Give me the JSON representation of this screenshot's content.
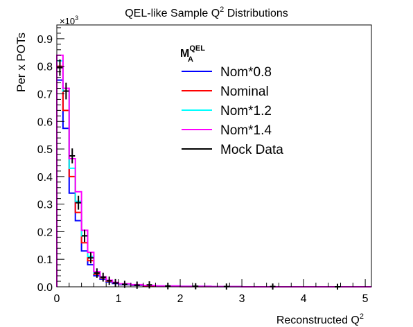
{
  "chart_data": {
    "type": "line",
    "title": "QEL-like Sample Q",
    "title_sup": "2",
    "title_suffix": " Distributions",
    "xlabel": "Reconstructed Q",
    "xlabel_sup": "2",
    "ylabel": "Per x POTs",
    "y_multiplier": "×10",
    "y_multiplier_sup": "3",
    "xlim": [
      0,
      5.1
    ],
    "ylim": [
      0,
      0.95
    ],
    "x_ticks": [
      {
        "value": 0,
        "label": "0"
      },
      {
        "value": 1,
        "label": "1"
      },
      {
        "value": 2,
        "label": "2"
      },
      {
        "value": 3,
        "label": "3"
      },
      {
        "value": 4,
        "label": "4"
      },
      {
        "value": 5,
        "label": "5"
      }
    ],
    "y_ticks": [
      {
        "value": 0.0,
        "label": "0.0"
      },
      {
        "value": 0.1,
        "label": "0.1"
      },
      {
        "value": 0.2,
        "label": "0.2"
      },
      {
        "value": 0.3,
        "label": "0.3"
      },
      {
        "value": 0.4,
        "label": "0.4"
      },
      {
        "value": 0.5,
        "label": "0.5"
      },
      {
        "value": 0.6,
        "label": "0.6"
      },
      {
        "value": 0.7,
        "label": "0.7"
      },
      {
        "value": 0.8,
        "label": "0.8"
      },
      {
        "value": 0.9,
        "label": "0.9"
      }
    ],
    "legend": {
      "header": "M",
      "header_sup": "QEL",
      "header_sub": "A",
      "placement": "top-right"
    },
    "bin_edges": [
      0,
      0.1,
      0.2,
      0.3,
      0.4,
      0.5,
      0.6,
      0.7,
      0.8,
      0.9,
      1.0,
      1.2,
      1.4,
      1.6,
      2.0,
      2.5,
      3.0,
      4.0,
      5.1
    ],
    "series": [
      {
        "name": "Nom*0.8",
        "color": "#0000ff",
        "kind": "hist",
        "values": [
          0.75,
          0.575,
          0.34,
          0.24,
          0.13,
          0.08,
          0.04,
          0.028,
          0.018,
          0.012,
          0.008,
          0.005,
          0.004,
          0.002,
          0.001,
          0.001,
          0.0,
          0.0
        ]
      },
      {
        "name": "Nominal",
        "color": "#ff0000",
        "kind": "hist",
        "values": [
          0.8,
          0.64,
          0.4,
          0.27,
          0.16,
          0.095,
          0.046,
          0.031,
          0.02,
          0.014,
          0.009,
          0.006,
          0.004,
          0.002,
          0.001,
          0.001,
          0.0,
          0.0
        ]
      },
      {
        "name": "Nom*1.2",
        "color": "#00ffff",
        "kind": "hist",
        "values": [
          0.82,
          0.71,
          0.43,
          0.31,
          0.185,
          0.11,
          0.05,
          0.034,
          0.022,
          0.015,
          0.01,
          0.007,
          0.005,
          0.003,
          0.002,
          0.001,
          0.0,
          0.0
        ]
      },
      {
        "name": "Nom*1.4",
        "color": "#ff00ff",
        "kind": "hist",
        "values": [
          0.84,
          0.72,
          0.465,
          0.345,
          0.205,
          0.125,
          0.055,
          0.036,
          0.024,
          0.016,
          0.011,
          0.008,
          0.005,
          0.003,
          0.002,
          0.001,
          0.0,
          0.0
        ]
      },
      {
        "name": "Mock Data",
        "color": "#000000",
        "kind": "points",
        "x": [
          0.05,
          0.15,
          0.25,
          0.35,
          0.45,
          0.55,
          0.65,
          0.75,
          0.85,
          0.95,
          1.1,
          1.3,
          1.5,
          1.8,
          2.25,
          2.75,
          3.5,
          4.55
        ],
        "values": [
          0.795,
          0.71,
          0.475,
          0.305,
          0.185,
          0.105,
          0.05,
          0.035,
          0.022,
          0.014,
          0.009,
          0.006,
          0.007,
          0.003,
          0.002,
          0.001,
          0.001,
          0.0
        ],
        "errors": [
          0.02,
          0.02,
          0.017,
          0.015,
          0.012,
          0.01,
          0.007,
          0.006,
          0.005,
          0.004,
          0.003,
          0.003,
          0.003,
          0.002,
          0.001,
          0.001,
          0.001,
          0.001
        ]
      }
    ]
  }
}
